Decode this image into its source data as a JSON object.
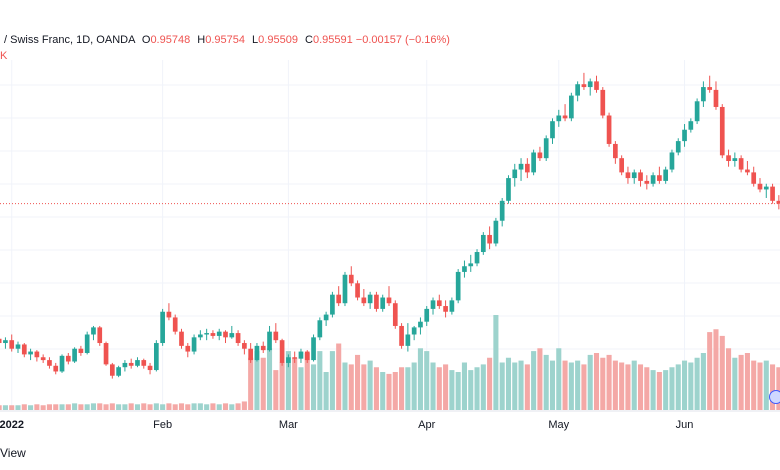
{
  "legend": {
    "symbol": "/ Swiss Franc, 1D, OANDA",
    "open_label": "O",
    "open": "0.95748",
    "high_label": "H",
    "high": "0.95754",
    "low_label": "L",
    "low": "0.95509",
    "close_label": "C",
    "close": "0.95591",
    "change": "−0.00157 (−0.16%)",
    "volume_fragment": "K"
  },
  "footer_text": "View",
  "colors": {
    "up": "#26a69a",
    "down": "#ef5350",
    "up_volume": "#9dd3cd",
    "down_volume": "#f4a8a6",
    "last_price_line": "#ef5350"
  },
  "chart_data": {
    "type": "candlestick",
    "x_tick_labels": [
      "2022",
      "Feb",
      "Mar",
      "Apr",
      "May",
      "Jun"
    ],
    "price_range_px_note": "",
    "candles": [
      {
        "o": 0.9185,
        "h": 0.9215,
        "l": 0.9165,
        "c": 0.917
      },
      {
        "o": 0.917,
        "h": 0.919,
        "l": 0.915,
        "c": 0.918
      },
      {
        "o": 0.918,
        "h": 0.92,
        "l": 0.914,
        "c": 0.915
      },
      {
        "o": 0.915,
        "h": 0.9175,
        "l": 0.9135,
        "c": 0.9165
      },
      {
        "o": 0.9165,
        "h": 0.917,
        "l": 0.912,
        "c": 0.913
      },
      {
        "o": 0.913,
        "h": 0.915,
        "l": 0.911,
        "c": 0.914
      },
      {
        "o": 0.914,
        "h": 0.9145,
        "l": 0.9105,
        "c": 0.912
      },
      {
        "o": 0.912,
        "h": 0.913,
        "l": 0.91,
        "c": 0.911
      },
      {
        "o": 0.911,
        "h": 0.912,
        "l": 0.908,
        "c": 0.909
      },
      {
        "o": 0.909,
        "h": 0.91,
        "l": 0.906,
        "c": 0.907
      },
      {
        "o": 0.907,
        "h": 0.913,
        "l": 0.9065,
        "c": 0.9125
      },
      {
        "o": 0.9125,
        "h": 0.9135,
        "l": 0.9095,
        "c": 0.9105
      },
      {
        "o": 0.9105,
        "h": 0.9155,
        "l": 0.91,
        "c": 0.915
      },
      {
        "o": 0.915,
        "h": 0.916,
        "l": 0.9125,
        "c": 0.9135
      },
      {
        "o": 0.9135,
        "h": 0.921,
        "l": 0.913,
        "c": 0.92
      },
      {
        "o": 0.92,
        "h": 0.923,
        "l": 0.918,
        "c": 0.9225
      },
      {
        "o": 0.9225,
        "h": 0.923,
        "l": 0.916,
        "c": 0.917
      },
      {
        "o": 0.917,
        "h": 0.9175,
        "l": 0.909,
        "c": 0.9095
      },
      {
        "o": 0.9095,
        "h": 0.91,
        "l": 0.9045,
        "c": 0.9055
      },
      {
        "o": 0.9055,
        "h": 0.909,
        "l": 0.905,
        "c": 0.9085
      },
      {
        "o": 0.9085,
        "h": 0.911,
        "l": 0.907,
        "c": 0.91
      },
      {
        "o": 0.91,
        "h": 0.9115,
        "l": 0.908,
        "c": 0.909
      },
      {
        "o": 0.909,
        "h": 0.912,
        "l": 0.9085,
        "c": 0.911
      },
      {
        "o": 0.911,
        "h": 0.9115,
        "l": 0.908,
        "c": 0.909
      },
      {
        "o": 0.909,
        "h": 0.91,
        "l": 0.906,
        "c": 0.9075
      },
      {
        "o": 0.9075,
        "h": 0.918,
        "l": 0.907,
        "c": 0.917
      },
      {
        "o": 0.917,
        "h": 0.929,
        "l": 0.916,
        "c": 0.928
      },
      {
        "o": 0.928,
        "h": 0.931,
        "l": 0.925,
        "c": 0.926
      },
      {
        "o": 0.926,
        "h": 0.927,
        "l": 0.92,
        "c": 0.921
      },
      {
        "o": 0.921,
        "h": 0.922,
        "l": 0.915,
        "c": 0.916
      },
      {
        "o": 0.916,
        "h": 0.917,
        "l": 0.912,
        "c": 0.914
      },
      {
        "o": 0.914,
        "h": 0.92,
        "l": 0.913,
        "c": 0.919
      },
      {
        "o": 0.919,
        "h": 0.9215,
        "l": 0.918,
        "c": 0.92
      },
      {
        "o": 0.92,
        "h": 0.922,
        "l": 0.918,
        "c": 0.9205
      },
      {
        "o": 0.9205,
        "h": 0.9215,
        "l": 0.9185,
        "c": 0.9195
      },
      {
        "o": 0.9195,
        "h": 0.922,
        "l": 0.918,
        "c": 0.921
      },
      {
        "o": 0.921,
        "h": 0.9215,
        "l": 0.917,
        "c": 0.919
      },
      {
        "o": 0.919,
        "h": 0.923,
        "l": 0.9185,
        "c": 0.9205
      },
      {
        "o": 0.9205,
        "h": 0.9215,
        "l": 0.916,
        "c": 0.917
      },
      {
        "o": 0.917,
        "h": 0.918,
        "l": 0.913,
        "c": 0.915
      },
      {
        "o": 0.915,
        "h": 0.917,
        "l": 0.91,
        "c": 0.911
      },
      {
        "o": 0.911,
        "h": 0.917,
        "l": 0.9105,
        "c": 0.916
      },
      {
        "o": 0.916,
        "h": 0.9175,
        "l": 0.9135,
        "c": 0.9145
      },
      {
        "o": 0.9145,
        "h": 0.923,
        "l": 0.914,
        "c": 0.921
      },
      {
        "o": 0.921,
        "h": 0.924,
        "l": 0.917,
        "c": 0.918
      },
      {
        "o": 0.918,
        "h": 0.9185,
        "l": 0.909,
        "c": 0.91
      },
      {
        "o": 0.91,
        "h": 0.913,
        "l": 0.9085,
        "c": 0.912
      },
      {
        "o": 0.912,
        "h": 0.914,
        "l": 0.91,
        "c": 0.9115
      },
      {
        "o": 0.9115,
        "h": 0.915,
        "l": 0.91,
        "c": 0.914
      },
      {
        "o": 0.914,
        "h": 0.9145,
        "l": 0.91,
        "c": 0.911
      },
      {
        "o": 0.911,
        "h": 0.92,
        "l": 0.9105,
        "c": 0.919
      },
      {
        "o": 0.919,
        "h": 0.926,
        "l": 0.918,
        "c": 0.925
      },
      {
        "o": 0.925,
        "h": 0.928,
        "l": 0.923,
        "c": 0.927
      },
      {
        "o": 0.927,
        "h": 0.935,
        "l": 0.926,
        "c": 0.934
      },
      {
        "o": 0.934,
        "h": 0.937,
        "l": 0.93,
        "c": 0.931
      },
      {
        "o": 0.931,
        "h": 0.942,
        "l": 0.93,
        "c": 0.941
      },
      {
        "o": 0.941,
        "h": 0.944,
        "l": 0.937,
        "c": 0.938
      },
      {
        "o": 0.938,
        "h": 0.939,
        "l": 0.932,
        "c": 0.933
      },
      {
        "o": 0.933,
        "h": 0.936,
        "l": 0.93,
        "c": 0.931
      },
      {
        "o": 0.931,
        "h": 0.935,
        "l": 0.929,
        "c": 0.934
      },
      {
        "o": 0.934,
        "h": 0.935,
        "l": 0.928,
        "c": 0.929
      },
      {
        "o": 0.929,
        "h": 0.934,
        "l": 0.928,
        "c": 0.933
      },
      {
        "o": 0.933,
        "h": 0.937,
        "l": 0.93,
        "c": 0.931
      },
      {
        "o": 0.931,
        "h": 0.932,
        "l": 0.922,
        "c": 0.923
      },
      {
        "o": 0.923,
        "h": 0.924,
        "l": 0.915,
        "c": 0.916
      },
      {
        "o": 0.916,
        "h": 0.924,
        "l": 0.914,
        "c": 0.92
      },
      {
        "o": 0.92,
        "h": 0.923,
        "l": 0.918,
        "c": 0.9225
      },
      {
        "o": 0.9225,
        "h": 0.926,
        "l": 0.92,
        "c": 0.9245
      },
      {
        "o": 0.9245,
        "h": 0.93,
        "l": 0.923,
        "c": 0.929
      },
      {
        "o": 0.929,
        "h": 0.933,
        "l": 0.927,
        "c": 0.932
      },
      {
        "o": 0.932,
        "h": 0.934,
        "l": 0.929,
        "c": 0.93
      },
      {
        "o": 0.93,
        "h": 0.932,
        "l": 0.926,
        "c": 0.928
      },
      {
        "o": 0.928,
        "h": 0.933,
        "l": 0.927,
        "c": 0.932
      },
      {
        "o": 0.932,
        "h": 0.943,
        "l": 0.931,
        "c": 0.942
      },
      {
        "o": 0.942,
        "h": 0.946,
        "l": 0.94,
        "c": 0.944
      },
      {
        "o": 0.944,
        "h": 0.948,
        "l": 0.942,
        "c": 0.945
      },
      {
        "o": 0.945,
        "h": 0.95,
        "l": 0.944,
        "c": 0.949
      },
      {
        "o": 0.949,
        "h": 0.956,
        "l": 0.948,
        "c": 0.955
      },
      {
        "o": 0.955,
        "h": 0.958,
        "l": 0.95,
        "c": 0.952
      },
      {
        "o": 0.952,
        "h": 0.961,
        "l": 0.951,
        "c": 0.96
      },
      {
        "o": 0.96,
        "h": 0.968,
        "l": 0.958,
        "c": 0.967
      },
      {
        "o": 0.967,
        "h": 0.976,
        "l": 0.966,
        "c": 0.975
      },
      {
        "o": 0.975,
        "h": 0.98,
        "l": 0.972,
        "c": 0.978
      },
      {
        "o": 0.978,
        "h": 0.982,
        "l": 0.974,
        "c": 0.98
      },
      {
        "o": 0.98,
        "h": 0.982,
        "l": 0.975,
        "c": 0.977
      },
      {
        "o": 0.977,
        "h": 0.985,
        "l": 0.976,
        "c": 0.984
      },
      {
        "o": 0.984,
        "h": 0.986,
        "l": 0.981,
        "c": 0.982
      },
      {
        "o": 0.982,
        "h": 0.99,
        "l": 0.981,
        "c": 0.989
      },
      {
        "o": 0.989,
        "h": 0.996,
        "l": 0.987,
        "c": 0.995
      },
      {
        "o": 0.995,
        "h": 0.999,
        "l": 0.993,
        "c": 0.997
      },
      {
        "o": 0.997,
        "h": 1.001,
        "l": 0.995,
        "c": 0.996
      },
      {
        "o": 0.996,
        "h": 1.005,
        "l": 0.995,
        "c": 1.004
      },
      {
        "o": 1.004,
        "h": 1.009,
        "l": 1.002,
        "c": 1.008
      },
      {
        "o": 1.008,
        "h": 1.012,
        "l": 1.006,
        "c": 1.007
      },
      {
        "o": 1.007,
        "h": 1.01,
        "l": 1.004,
        "c": 1.009
      },
      {
        "o": 1.009,
        "h": 1.011,
        "l": 1.005,
        "c": 1.006
      },
      {
        "o": 1.006,
        "h": 1.007,
        "l": 0.996,
        "c": 0.997
      },
      {
        "o": 0.997,
        "h": 0.998,
        "l": 0.986,
        "c": 0.987
      },
      {
        "o": 0.987,
        "h": 0.988,
        "l": 0.98,
        "c": 0.982
      },
      {
        "o": 0.982,
        "h": 0.983,
        "l": 0.976,
        "c": 0.977
      },
      {
        "o": 0.977,
        "h": 0.979,
        "l": 0.973,
        "c": 0.975
      },
      {
        "o": 0.975,
        "h": 0.978,
        "l": 0.973,
        "c": 0.977
      },
      {
        "o": 0.977,
        "h": 0.978,
        "l": 0.972,
        "c": 0.974
      },
      {
        "o": 0.974,
        "h": 0.976,
        "l": 0.971,
        "c": 0.973
      },
      {
        "o": 0.973,
        "h": 0.977,
        "l": 0.972,
        "c": 0.976
      },
      {
        "o": 0.976,
        "h": 0.979,
        "l": 0.973,
        "c": 0.974
      },
      {
        "o": 0.974,
        "h": 0.979,
        "l": 0.973,
        "c": 0.978
      },
      {
        "o": 0.978,
        "h": 0.985,
        "l": 0.977,
        "c": 0.984
      },
      {
        "o": 0.984,
        "h": 0.989,
        "l": 0.983,
        "c": 0.988
      },
      {
        "o": 0.988,
        "h": 0.994,
        "l": 0.986,
        "c": 0.992
      },
      {
        "o": 0.992,
        "h": 0.996,
        "l": 0.991,
        "c": 0.995
      },
      {
        "o": 0.995,
        "h": 1.003,
        "l": 0.994,
        "c": 1.002
      },
      {
        "o": 1.002,
        "h": 1.009,
        "l": 1.0,
        "c": 1.007
      },
      {
        "o": 1.007,
        "h": 1.011,
        "l": 1.005,
        "c": 1.006
      },
      {
        "o": 1.006,
        "h": 1.009,
        "l": 0.999,
        "c": 1.0
      },
      {
        "o": 1.0,
        "h": 1.001,
        "l": 0.982,
        "c": 0.983
      },
      {
        "o": 0.983,
        "h": 0.985,
        "l": 0.979,
        "c": 0.981
      },
      {
        "o": 0.981,
        "h": 0.984,
        "l": 0.979,
        "c": 0.982
      },
      {
        "o": 0.982,
        "h": 0.983,
        "l": 0.977,
        "c": 0.978
      },
      {
        "o": 0.978,
        "h": 0.981,
        "l": 0.976,
        "c": 0.977
      },
      {
        "o": 0.977,
        "h": 0.979,
        "l": 0.972,
        "c": 0.973
      },
      {
        "o": 0.973,
        "h": 0.975,
        "l": 0.97,
        "c": 0.971
      },
      {
        "o": 0.971,
        "h": 0.973,
        "l": 0.968,
        "c": 0.972
      },
      {
        "o": 0.972,
        "h": 0.973,
        "l": 0.966,
        "c": 0.967
      },
      {
        "o": 0.967,
        "h": 0.969,
        "l": 0.964,
        "c": 0.966
      }
    ],
    "volumes": [
      0.05,
      0.05,
      0.05,
      0.05,
      0.06,
      0.05,
      0.06,
      0.05,
      0.06,
      0.06,
      0.06,
      0.06,
      0.07,
      0.06,
      0.06,
      0.07,
      0.07,
      0.06,
      0.07,
      0.06,
      0.06,
      0.07,
      0.06,
      0.07,
      0.06,
      0.07,
      0.06,
      0.07,
      0.06,
      0.07,
      0.06,
      0.07,
      0.07,
      0.06,
      0.07,
      0.06,
      0.07,
      0.06,
      0.07,
      0.09,
      0.55,
      0.62,
      0.55,
      0.65,
      0.42,
      0.5,
      0.62,
      0.55,
      0.45,
      0.6,
      0.48,
      0.62,
      0.4,
      0.62,
      0.7,
      0.5,
      0.48,
      0.58,
      0.48,
      0.52,
      0.45,
      0.4,
      0.38,
      0.4,
      0.45,
      0.45,
      0.5,
      0.65,
      0.62,
      0.5,
      0.45,
      0.48,
      0.42,
      0.4,
      0.5,
      0.42,
      0.45,
      0.48,
      0.55,
      1.0,
      0.5,
      0.55,
      0.5,
      0.52,
      0.48,
      0.62,
      0.65,
      0.58,
      0.52,
      0.65,
      0.52,
      0.5,
      0.52,
      0.48,
      0.58,
      0.6,
      0.55,
      0.58,
      0.52,
      0.5,
      0.48,
      0.52,
      0.48,
      0.45,
      0.42,
      0.4,
      0.42,
      0.45,
      0.48,
      0.52,
      0.5,
      0.55,
      0.6,
      0.82,
      0.85,
      0.78,
      0.65,
      0.55,
      0.58,
      0.6,
      0.52,
      0.5,
      0.52,
      0.48,
      0.45
    ],
    "x_tick_index": [
      2,
      26,
      46,
      68,
      89,
      109
    ]
  }
}
